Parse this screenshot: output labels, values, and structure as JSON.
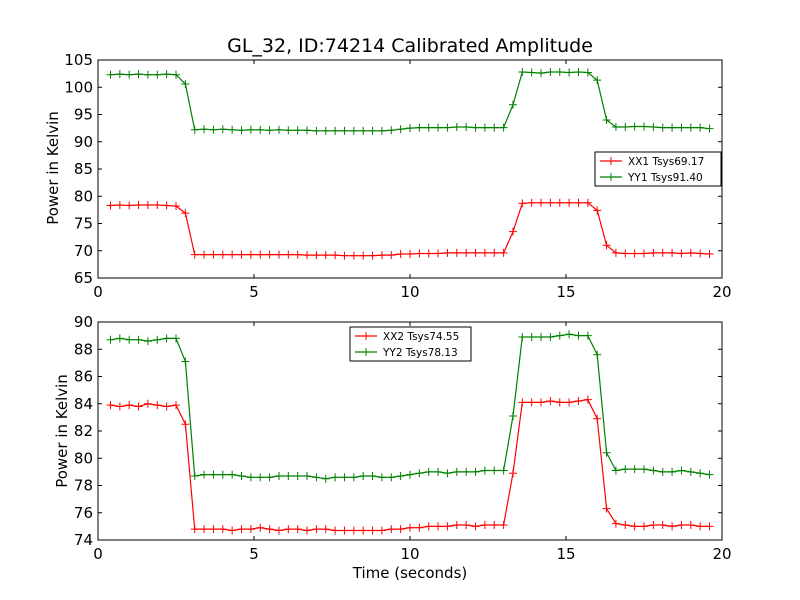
{
  "chart_data": [
    {
      "type": "line",
      "title": "GL_32, ID:74214 Calibrated Amplitude",
      "xlabel": "",
      "ylabel": "Power in Kelvin",
      "xlim": [
        0,
        20
      ],
      "ylim": [
        65,
        105
      ],
      "xticks": [
        "0",
        "5",
        "10",
        "15",
        "20"
      ],
      "yticks": [
        "65",
        "70",
        "75",
        "80",
        "85",
        "90",
        "95",
        "100",
        "105"
      ],
      "grid": false,
      "legend_position": "right",
      "x": [
        0.4,
        0.7,
        1.0,
        1.3,
        1.6,
        1.9,
        2.2,
        2.5,
        2.8,
        3.1,
        3.4,
        3.7,
        4.0,
        4.3,
        4.6,
        4.9,
        5.2,
        5.5,
        5.8,
        6.1,
        6.4,
        6.7,
        7.0,
        7.3,
        7.6,
        7.9,
        8.2,
        8.5,
        8.8,
        9.1,
        9.4,
        9.7,
        10.0,
        10.3,
        10.6,
        10.9,
        11.2,
        11.5,
        11.8,
        12.1,
        12.4,
        12.7,
        13.0,
        13.3,
        13.6,
        13.9,
        14.2,
        14.5,
        14.8,
        15.1,
        15.4,
        15.7,
        16.0,
        16.3,
        16.6,
        16.9,
        17.2,
        17.5,
        17.8,
        18.1,
        18.4,
        18.7,
        19.0,
        19.3,
        19.6
      ],
      "series": [
        {
          "name": "XX1 Tsys69.17",
          "color": "#ff0000",
          "values": [
            78.3,
            78.4,
            78.3,
            78.4,
            78.4,
            78.4,
            78.3,
            78.2,
            76.9,
            69.3,
            69.3,
            69.3,
            69.3,
            69.3,
            69.3,
            69.3,
            69.3,
            69.3,
            69.3,
            69.3,
            69.3,
            69.2,
            69.2,
            69.2,
            69.2,
            69.1,
            69.1,
            69.1,
            69.1,
            69.2,
            69.2,
            69.4,
            69.4,
            69.5,
            69.5,
            69.5,
            69.6,
            69.6,
            69.6,
            69.6,
            69.6,
            69.6,
            69.6,
            73.5,
            78.7,
            78.8,
            78.8,
            78.8,
            78.8,
            78.8,
            78.8,
            78.8,
            77.4,
            71.0,
            69.6,
            69.5,
            69.5,
            69.5,
            69.6,
            69.6,
            69.6,
            69.5,
            69.6,
            69.5,
            69.4
          ]
        },
        {
          "name": "YY1 Tsys91.40",
          "color": "#008000",
          "values": [
            102.3,
            102.4,
            102.3,
            102.4,
            102.3,
            102.3,
            102.4,
            102.3,
            100.6,
            92.2,
            92.3,
            92.2,
            92.3,
            92.2,
            92.1,
            92.2,
            92.2,
            92.1,
            92.2,
            92.1,
            92.1,
            92.1,
            92.0,
            92.0,
            92.0,
            92.0,
            92.0,
            92.0,
            92.0,
            92.0,
            92.1,
            92.3,
            92.5,
            92.6,
            92.6,
            92.6,
            92.6,
            92.7,
            92.7,
            92.6,
            92.6,
            92.6,
            92.6,
            96.8,
            102.8,
            102.7,
            102.6,
            102.8,
            102.8,
            102.7,
            102.8,
            102.7,
            101.3,
            94.0,
            92.7,
            92.7,
            92.8,
            92.8,
            92.7,
            92.6,
            92.6,
            92.6,
            92.6,
            92.6,
            92.4
          ]
        }
      ]
    },
    {
      "type": "line",
      "title": "",
      "xlabel": "Time (seconds)",
      "ylabel": "Power in Kelvin",
      "xlim": [
        0,
        20
      ],
      "ylim": [
        74,
        90
      ],
      "xticks": [
        "0",
        "5",
        "10",
        "15",
        "20"
      ],
      "yticks": [
        "74",
        "76",
        "78",
        "80",
        "82",
        "84",
        "86",
        "88",
        "90"
      ],
      "grid": false,
      "legend_position": "top-center",
      "x": [
        0.4,
        0.7,
        1.0,
        1.3,
        1.6,
        1.9,
        2.2,
        2.5,
        2.8,
        3.1,
        3.4,
        3.7,
        4.0,
        4.3,
        4.6,
        4.9,
        5.2,
        5.5,
        5.8,
        6.1,
        6.4,
        6.7,
        7.0,
        7.3,
        7.6,
        7.9,
        8.2,
        8.5,
        8.8,
        9.1,
        9.4,
        9.7,
        10.0,
        10.3,
        10.6,
        10.9,
        11.2,
        11.5,
        11.8,
        12.1,
        12.4,
        12.7,
        13.0,
        13.3,
        13.6,
        13.9,
        14.2,
        14.5,
        14.8,
        15.1,
        15.4,
        15.7,
        16.0,
        16.3,
        16.6,
        16.9,
        17.2,
        17.5,
        17.8,
        18.1,
        18.4,
        18.7,
        19.0,
        19.3,
        19.6
      ],
      "series": [
        {
          "name": "XX2 Tsys74.55",
          "color": "#ff0000",
          "values": [
            83.9,
            83.8,
            83.9,
            83.8,
            84.0,
            83.9,
            83.8,
            83.9,
            82.5,
            74.8,
            74.8,
            74.8,
            74.8,
            74.7,
            74.8,
            74.8,
            74.9,
            74.8,
            74.7,
            74.8,
            74.8,
            74.7,
            74.8,
            74.8,
            74.7,
            74.7,
            74.7,
            74.7,
            74.7,
            74.7,
            74.8,
            74.8,
            74.9,
            74.9,
            75.0,
            75.0,
            75.0,
            75.1,
            75.1,
            75.0,
            75.1,
            75.1,
            75.1,
            78.9,
            84.1,
            84.1,
            84.1,
            84.2,
            84.1,
            84.1,
            84.2,
            84.3,
            82.9,
            76.3,
            75.2,
            75.1,
            75.0,
            75.0,
            75.1,
            75.1,
            75.0,
            75.1,
            75.1,
            75.0,
            75.0
          ]
        },
        {
          "name": "YY2 Tsys78.13",
          "color": "#008000",
          "values": [
            88.7,
            88.8,
            88.7,
            88.7,
            88.6,
            88.7,
            88.8,
            88.8,
            87.1,
            78.7,
            78.8,
            78.8,
            78.8,
            78.8,
            78.7,
            78.6,
            78.6,
            78.6,
            78.7,
            78.7,
            78.7,
            78.7,
            78.6,
            78.5,
            78.6,
            78.6,
            78.6,
            78.7,
            78.7,
            78.6,
            78.6,
            78.7,
            78.8,
            78.9,
            79.0,
            79.0,
            78.9,
            79.0,
            79.0,
            79.0,
            79.1,
            79.1,
            79.1,
            83.1,
            88.9,
            88.9,
            88.9,
            88.9,
            89.0,
            89.1,
            89.0,
            89.0,
            87.6,
            80.4,
            79.1,
            79.2,
            79.2,
            79.2,
            79.1,
            79.0,
            79.0,
            79.1,
            79.0,
            78.9,
            78.8
          ]
        }
      ]
    }
  ]
}
